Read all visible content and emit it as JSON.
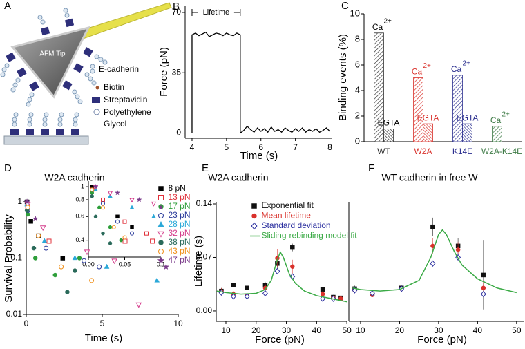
{
  "diagram": {
    "panel": "A",
    "tip_label": "AFM Tip",
    "legend": [
      "E-cadherin",
      "Biotin",
      "Streptavidin",
      "Polyethylene",
      "Glycol"
    ]
  },
  "chart_data": [
    {
      "type": "line",
      "panel": "B",
      "xlabel": "Time (s)",
      "ylabel": "Force (pN)",
      "annotation": "Lifetime",
      "color": "#000000",
      "xlim": [
        3.8,
        8.05
      ],
      "ylim": [
        -3,
        74
      ],
      "xticks": [
        4,
        5,
        6,
        7,
        8
      ],
      "yticks": [
        0,
        35,
        70
      ],
      "x": [
        4.0,
        4.0,
        4.1,
        4.2,
        4.3,
        4.4,
        4.5,
        4.6,
        4.7,
        4.8,
        4.9,
        5.0,
        5.1,
        5.2,
        5.3,
        5.4,
        5.4,
        5.5,
        5.6,
        5.7,
        5.8,
        5.9,
        6.0,
        6.1,
        6.2,
        6.3,
        6.4,
        6.5,
        6.6,
        6.7,
        6.8,
        6.9,
        7.0,
        7.1,
        7.2,
        7.3,
        7.4,
        7.5,
        7.6,
        7.7,
        7.8,
        7.9,
        8.0
      ],
      "values": [
        0,
        57,
        58,
        56.5,
        57.5,
        58.5,
        56,
        57,
        58,
        57.5,
        56.5,
        58,
        57,
        56.5,
        58,
        57,
        0,
        1.5,
        4,
        2,
        0.5,
        3,
        1,
        2.5,
        0.5,
        3.5,
        1,
        2,
        0.5,
        3,
        1.5,
        0.5,
        2.5,
        1,
        3,
        0.5,
        2,
        1,
        2.5,
        0.5,
        1.5,
        3,
        1
      ]
    },
    {
      "type": "bar",
      "panel": "C",
      "ylabel": "Binding events (%)",
      "categories": [
        "WT",
        "W2A",
        "K14E",
        "W2A-K14E"
      ],
      "category_colors": [
        "#333333",
        "#d9312b",
        "#2b2f8f",
        "#3d7a45"
      ],
      "series": [
        {
          "name": "Ca",
          "superscript": "2+",
          "values": [
            8.5,
            5.0,
            5.2,
            1.2
          ]
        },
        {
          "name": "EGTA",
          "values": [
            1.0,
            1.4,
            1.4,
            null
          ]
        }
      ],
      "ylim": [
        0,
        10
      ],
      "yticks": [
        0,
        2,
        4,
        6,
        8,
        10
      ]
    },
    {
      "type": "scatter",
      "panel": "D",
      "title": "W2A cadherin",
      "xlabel": "Time (s)",
      "ylabel": "Survival Probability",
      "xlim": [
        0,
        10
      ],
      "ylim": [
        0.01,
        1
      ],
      "ylog": true,
      "xticks": [
        0,
        5,
        10
      ],
      "yticks": [
        0.01,
        0.1,
        1
      ],
      "legend": "inset-right",
      "inset": {
        "xlim": [
          0,
          0.1
        ],
        "ylim": [
          0.3,
          1.1
        ],
        "ylog": true,
        "xticks": [
          {
            "value": 0,
            "label": "0.00"
          },
          0.05,
          0.1
        ],
        "yticks": [
          0.4,
          0.6,
          0.8,
          1
        ]
      },
      "series": [
        {
          "name": "8 pN",
          "color": "#000000",
          "marker": "square",
          "x": [
            0.05,
            0.3,
            0.8,
            2.4
          ],
          "values": [
            1,
            0.45,
            0.25,
            0.1
          ],
          "inset_x": [
            0.005,
            0.02,
            0.04,
            0.06
          ],
          "inset_values": [
            1,
            0.8,
            0.6,
            0.5
          ]
        },
        {
          "name": "13 pN",
          "color": "#e0303a",
          "marker": "square-open",
          "x": [
            0.1,
            1.5,
            6.5,
            8.3
          ],
          "values": [
            0.8,
            0.2,
            0.2,
            0.2
          ],
          "inset_x": [
            0.005,
            0.02,
            0.05,
            0.08
          ],
          "inset_values": [
            0.95,
            0.8,
            0.55,
            0.45
          ]
        },
        {
          "name": "17 pN",
          "color": "#2e9e3a",
          "marker": "circle",
          "x": [
            0.1,
            0.6,
            1.9,
            3.5
          ],
          "values": [
            0.6,
            0.1,
            0.05,
            0.1
          ],
          "inset_x": [
            0.005,
            0.015,
            0.03,
            0.045
          ],
          "inset_values": [
            0.9,
            0.7,
            0.5,
            0.4
          ]
        },
        {
          "name": "23 pN",
          "color": "#2a3a9a",
          "marker": "circle-open",
          "x": [
            0.1,
            1.3,
            3.8,
            4.8
          ],
          "values": [
            0.7,
            0.15,
            0.09,
            0.07
          ],
          "inset_x": [
            0.005,
            0.02,
            0.04,
            0.06
          ],
          "inset_values": [
            0.95,
            0.75,
            0.55,
            0.45
          ]
        },
        {
          "name": "28 pN",
          "color": "#2aa8d8",
          "marker": "triangle",
          "x": [
            0.05,
            1.2,
            3.2,
            5.3,
            8.6
          ],
          "values": [
            0.9,
            0.2,
            0.1,
            0.07,
            0.04
          ],
          "inset_x": [
            0.01,
            0.03,
            0.06,
            0.09
          ],
          "inset_values": [
            0.95,
            0.85,
            0.7,
            0.6
          ]
        },
        {
          "name": "32 pN",
          "color": "#d43a8a",
          "marker": "triangle-down-open",
          "x": [
            0.1,
            1.1,
            4.0,
            5.8,
            7.4
          ],
          "values": [
            0.9,
            0.35,
            0.13,
            0.09,
            0.015
          ],
          "inset_x": [
            0.01,
            0.03,
            0.06,
            0.09
          ],
          "inset_values": [
            1,
            0.9,
            0.8,
            0.75
          ]
        },
        {
          "name": "38 pN",
          "color": "#2a6a5a",
          "marker": "circle",
          "x": [
            0.05,
            0.5,
            2.7,
            3.2
          ],
          "values": [
            0.7,
            0.15,
            0.025,
            0.06
          ],
          "inset_x": [
            0.005,
            0.01,
            0.02,
            0.03
          ],
          "inset_values": [
            0.85,
            0.6,
            0.45,
            0.38
          ]
        },
        {
          "name": "43 pN",
          "color": "#f0901a",
          "marker": "circle-open",
          "x": [
            0.1,
            0.8,
            2.3,
            4.3
          ],
          "values": [
            0.8,
            0.25,
            0.07,
            0.04
          ],
          "inset_x": [
            0.005,
            0.02,
            0.035,
            0.05
          ],
          "inset_values": [
            0.95,
            0.7,
            0.5,
            0.42
          ]
        },
        {
          "name": "47 pN",
          "color": "#7a3a8a",
          "marker": "star",
          "x": [
            0.05,
            0.6,
            9.2
          ],
          "values": [
            1,
            0.5,
            0.07
          ],
          "inset_x": [
            0.01,
            0.04,
            0.07,
            0.1
          ],
          "inset_values": [
            1,
            0.9,
            0.8,
            0.7
          ]
        }
      ]
    },
    {
      "type": "scatter",
      "panel": "E",
      "title": "W2A cadherin",
      "xlabel": "Force (pN)",
      "ylabel": "Lifetime (s)",
      "xlim": [
        6.8,
        50.2
      ],
      "ylim": [
        -0.0136,
        0.1427
      ],
      "xticks": [
        10,
        20,
        30,
        40,
        50
      ],
      "yticks": [
        {
          "value": 0,
          "label": "0.00"
        },
        0.07,
        0.14
      ],
      "legend": "upper-center",
      "series": [
        {
          "name": "Exponential fit",
          "color": "#111111",
          "marker": "square",
          "x": [
            8.5,
            12.5,
            17,
            23,
            27,
            32,
            42,
            45.5,
            48
          ],
          "values": [
            0.026,
            0.034,
            0.03,
            0.034,
            0.062,
            0.083,
            0.028,
            0.018,
            0.017
          ],
          "errors": [
            0.004,
            0.003,
            0.003,
            0.004,
            0.008,
            0.005,
            0.003,
            0.003,
            0.003
          ]
        },
        {
          "name": "Mean lifetime",
          "color": "#d9312b",
          "marker": "circle",
          "x": [
            8.5,
            12.5,
            17,
            23,
            27,
            32,
            42,
            45.5,
            48
          ],
          "values": [
            0.025,
            0.022,
            0.02,
            0.03,
            0.069,
            0.058,
            0.022,
            0.017,
            0.016
          ],
          "errors": [
            0.005,
            0.004,
            0.004,
            0.005,
            0.012,
            0.009,
            0.004,
            0.003,
            0.003
          ]
        },
        {
          "name": "Standard deviation",
          "color": "#2b2f9f",
          "marker": "diamond-open",
          "x": [
            8.5,
            12.5,
            17,
            23,
            27,
            32,
            42,
            45.5
          ],
          "values": [
            0.024,
            0.019,
            0.019,
            0.023,
            0.052,
            0.045,
            0.016,
            0.016
          ]
        },
        {
          "name": "Sliding-rebinding model fit",
          "color": "#3aaa45",
          "line": true,
          "x": [
            7,
            10,
            15,
            20,
            23,
            25,
            27,
            28,
            29,
            31,
            33,
            36,
            40,
            45,
            50
          ],
          "values": [
            0.026,
            0.024,
            0.022,
            0.023,
            0.028,
            0.04,
            0.067,
            0.077,
            0.07,
            0.048,
            0.036,
            0.026,
            0.02,
            0.016,
            0.012
          ]
        }
      ]
    },
    {
      "type": "scatter",
      "panel": "F",
      "title": "WT cadherin in free W",
      "xlabel": "Force (pN)",
      "xlim": [
        7,
        51.8
      ],
      "ylim": [
        -0.0136,
        0.1427
      ],
      "xticks": [
        10,
        20,
        30,
        40,
        50
      ],
      "series": [
        {
          "color": "#111111",
          "marker": "square",
          "x": [
            8.5,
            13,
            20.5,
            28.5,
            35,
            41.5
          ],
          "values": [
            0.029,
            0.022,
            0.03,
            0.11,
            0.085,
            0.047
          ],
          "errors": [
            0.004,
            0.003,
            0.004,
            0.012,
            0.01,
            0.045
          ]
        },
        {
          "color": "#d9312b",
          "marker": "circle",
          "x": [
            8.5,
            13,
            20.5,
            28.5,
            35,
            41.5
          ],
          "values": [
            0.027,
            0.021,
            0.029,
            0.085,
            0.08,
            0.03
          ],
          "errors": [
            0.004,
            0.003,
            0.004,
            0.01,
            0.01,
            0.01
          ]
        },
        {
          "color": "#2b2f9f",
          "marker": "diamond-open",
          "x": [
            8.5,
            13,
            20.5,
            28.5,
            35,
            41.5
          ],
          "values": [
            0.027,
            0.023,
            0.029,
            0.062,
            0.07,
            0.022
          ]
        },
        {
          "color": "#3aaa45",
          "line": true,
          "x": [
            8,
            10,
            15,
            20,
            25,
            28,
            30,
            31,
            32,
            34,
            36,
            40,
            45,
            50
          ],
          "values": [
            0.03,
            0.028,
            0.026,
            0.028,
            0.04,
            0.07,
            0.1,
            0.106,
            0.1,
            0.078,
            0.06,
            0.042,
            0.03,
            0.024
          ]
        }
      ]
    }
  ]
}
